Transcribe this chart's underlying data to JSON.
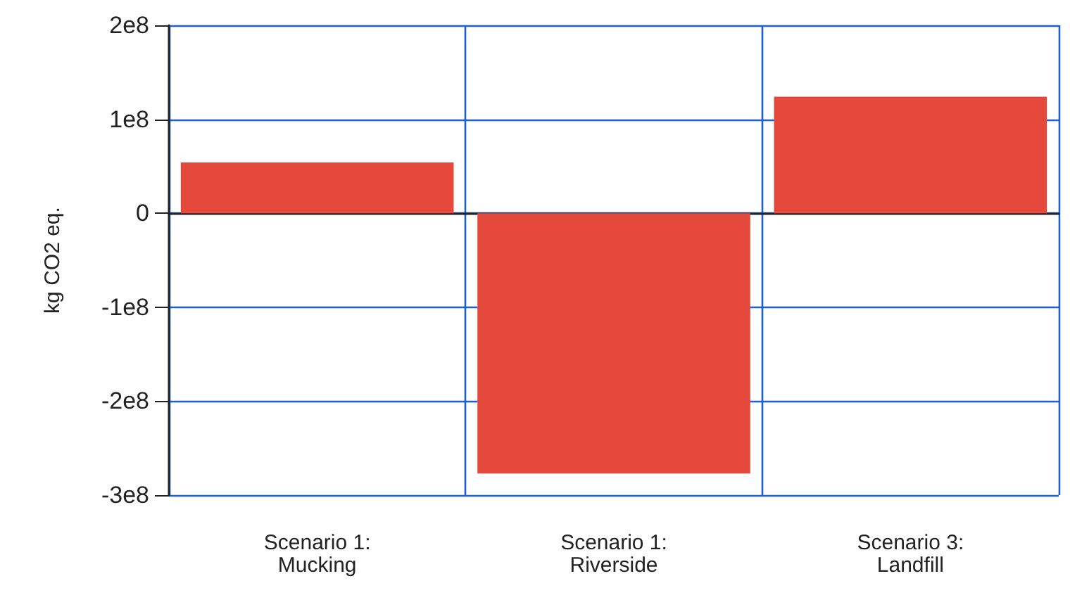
{
  "chart_data": {
    "type": "bar",
    "ylabel": "kg CO2 eq.",
    "categories": [
      "Scenario 1:\nMucking",
      "Scenario 1:\nRiverside",
      "Scenario 3:\nLandfill"
    ],
    "values": [
      54000000,
      -277000000,
      124000000
    ],
    "color": "#e5493c",
    "ylim": [
      -300000000,
      200000000
    ],
    "yticks": [
      {
        "value": -300000000,
        "label": "-3e8"
      },
      {
        "value": -200000000,
        "label": "-2e8"
      },
      {
        "value": -100000000,
        "label": "-1e8"
      },
      0,
      {
        "value": 100000000,
        "label": "1e8"
      },
      {
        "value": 200000000,
        "label": "2e8"
      }
    ],
    "grid": true
  }
}
